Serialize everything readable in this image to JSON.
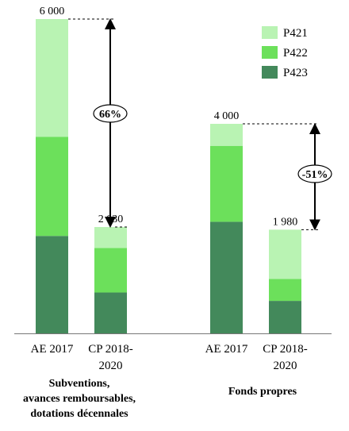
{
  "chart_data": {
    "type": "bar",
    "stacked": true,
    "series": [
      {
        "name": "P421",
        "color": "#b9f3b3"
      },
      {
        "name": "P422",
        "color": "#6ce05b"
      },
      {
        "name": "P423",
        "color": "#43895b"
      }
    ],
    "ylim": [
      0,
      6000
    ],
    "grid": false,
    "legend_position": "top-right",
    "bars": [
      {
        "label": "AE 2017",
        "group": 0,
        "total": 6000,
        "total_label": "6 000",
        "values": [
          2250,
          1890,
          1860
        ]
      },
      {
        "label": "CP 2018-2020",
        "label_lines": [
          "CP 2018-",
          "2020"
        ],
        "group": 0,
        "total": 2030,
        "total_label": "2 030",
        "values": [
          400,
          850,
          780
        ]
      },
      {
        "label": "AE 2017",
        "group": 1,
        "total": 4000,
        "total_label": "4 000",
        "values": [
          420,
          1450,
          2130
        ]
      },
      {
        "label": "CP 2018-2020",
        "label_lines": [
          "CP 2018-",
          "2020"
        ],
        "group": 1,
        "total": 1980,
        "total_label": "1 980",
        "values": [
          940,
          420,
          620
        ]
      }
    ],
    "groups": [
      {
        "label_lines": [
          "Subventions,",
          "avances remboursables,",
          "dotations décennales"
        ]
      },
      {
        "label_lines": [
          "Fonds propres"
        ]
      }
    ],
    "annotations": [
      {
        "from_bar": 0,
        "to_bar": 1,
        "text": "66%"
      },
      {
        "from_bar": 2,
        "to_bar": 3,
        "text": "-51%"
      }
    ]
  }
}
